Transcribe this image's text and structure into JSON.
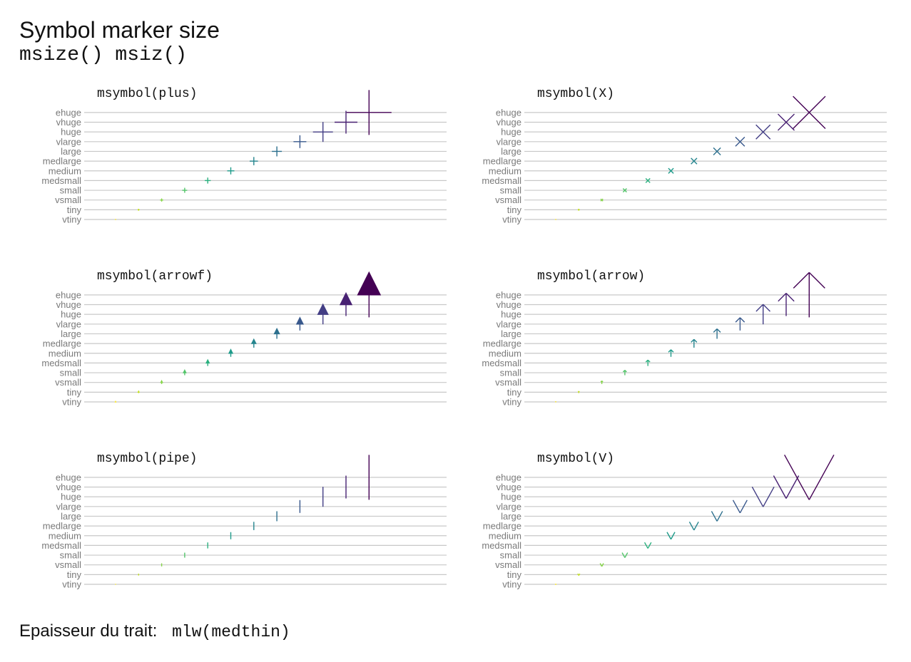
{
  "title": "Symbol marker size",
  "subtitle": "msize() msiz()",
  "footer": {
    "label": "Epaisseur du trait:",
    "code": "mlw(medthin)"
  },
  "size_levels": [
    "vtiny",
    "tiny",
    "vsmall",
    "small",
    "medsmall",
    "medium",
    "medlarge",
    "large",
    "vlarge",
    "huge",
    "vhuge",
    "ehuge"
  ],
  "chart_data": [
    {
      "type": "scatter",
      "title": "msymbol(plus)",
      "symbol": "plus",
      "categories": [
        "vtiny",
        "tiny",
        "vsmall",
        "small",
        "medsmall",
        "medium",
        "medlarge",
        "large",
        "vlarge",
        "huge",
        "vhuge",
        "ehuge"
      ],
      "x": [
        1,
        2,
        3,
        4,
        5,
        6,
        7,
        8,
        9,
        10,
        11,
        12
      ],
      "y": [
        "vtiny",
        "tiny",
        "vsmall",
        "small",
        "medsmall",
        "medium",
        "medlarge",
        "large",
        "vlarge",
        "huge",
        "vhuge",
        "ehuge"
      ],
      "grid": true,
      "legend": "none"
    },
    {
      "type": "scatter",
      "title": "msymbol(X)",
      "symbol": "X",
      "categories": [
        "vtiny",
        "tiny",
        "vsmall",
        "small",
        "medsmall",
        "medium",
        "medlarge",
        "large",
        "vlarge",
        "huge",
        "vhuge",
        "ehuge"
      ],
      "x": [
        1,
        2,
        3,
        4,
        5,
        6,
        7,
        8,
        9,
        10,
        11,
        12
      ],
      "y": [
        "vtiny",
        "tiny",
        "vsmall",
        "small",
        "medsmall",
        "medium",
        "medlarge",
        "large",
        "vlarge",
        "huge",
        "vhuge",
        "ehuge"
      ],
      "grid": true,
      "legend": "none"
    },
    {
      "type": "scatter",
      "title": "msymbol(arrowf)",
      "symbol": "arrowf",
      "categories": [
        "vtiny",
        "tiny",
        "vsmall",
        "small",
        "medsmall",
        "medium",
        "medlarge",
        "large",
        "vlarge",
        "huge",
        "vhuge",
        "ehuge"
      ],
      "x": [
        1,
        2,
        3,
        4,
        5,
        6,
        7,
        8,
        9,
        10,
        11,
        12
      ],
      "y": [
        "vtiny",
        "tiny",
        "vsmall",
        "small",
        "medsmall",
        "medium",
        "medlarge",
        "large",
        "vlarge",
        "huge",
        "vhuge",
        "ehuge"
      ],
      "grid": true,
      "legend": "none"
    },
    {
      "type": "scatter",
      "title": "msymbol(arrow)",
      "symbol": "arrow",
      "categories": [
        "vtiny",
        "tiny",
        "vsmall",
        "small",
        "medsmall",
        "medium",
        "medlarge",
        "large",
        "vlarge",
        "huge",
        "vhuge",
        "ehuge"
      ],
      "x": [
        1,
        2,
        3,
        4,
        5,
        6,
        7,
        8,
        9,
        10,
        11,
        12
      ],
      "y": [
        "vtiny",
        "tiny",
        "vsmall",
        "small",
        "medsmall",
        "medium",
        "medlarge",
        "large",
        "vlarge",
        "huge",
        "vhuge",
        "ehuge"
      ],
      "grid": true,
      "legend": "none"
    },
    {
      "type": "scatter",
      "title": "msymbol(pipe)",
      "symbol": "pipe",
      "categories": [
        "vtiny",
        "tiny",
        "vsmall",
        "small",
        "medsmall",
        "medium",
        "medlarge",
        "large",
        "vlarge",
        "huge",
        "vhuge",
        "ehuge"
      ],
      "x": [
        1,
        2,
        3,
        4,
        5,
        6,
        7,
        8,
        9,
        10,
        11,
        12
      ],
      "y": [
        "vtiny",
        "tiny",
        "vsmall",
        "small",
        "medsmall",
        "medium",
        "medlarge",
        "large",
        "vlarge",
        "huge",
        "vhuge",
        "ehuge"
      ],
      "grid": true,
      "legend": "none"
    },
    {
      "type": "scatter",
      "title": "msymbol(V)",
      "symbol": "V",
      "categories": [
        "vtiny",
        "tiny",
        "vsmall",
        "small",
        "medsmall",
        "medium",
        "medlarge",
        "large",
        "vlarge",
        "huge",
        "vhuge",
        "ehuge"
      ],
      "x": [
        1,
        2,
        3,
        4,
        5,
        6,
        7,
        8,
        9,
        10,
        11,
        12
      ],
      "y": [
        "vtiny",
        "tiny",
        "vsmall",
        "small",
        "medsmall",
        "medium",
        "medlarge",
        "large",
        "vlarge",
        "huge",
        "vhuge",
        "ehuge"
      ],
      "grid": true,
      "legend": "none"
    }
  ],
  "colors": [
    "#fde725",
    "#c2df23",
    "#86d549",
    "#52c569",
    "#2ab07f",
    "#1e9b8a",
    "#25858e",
    "#2d708e",
    "#38588c",
    "#433e85",
    "#482173",
    "#440154"
  ]
}
